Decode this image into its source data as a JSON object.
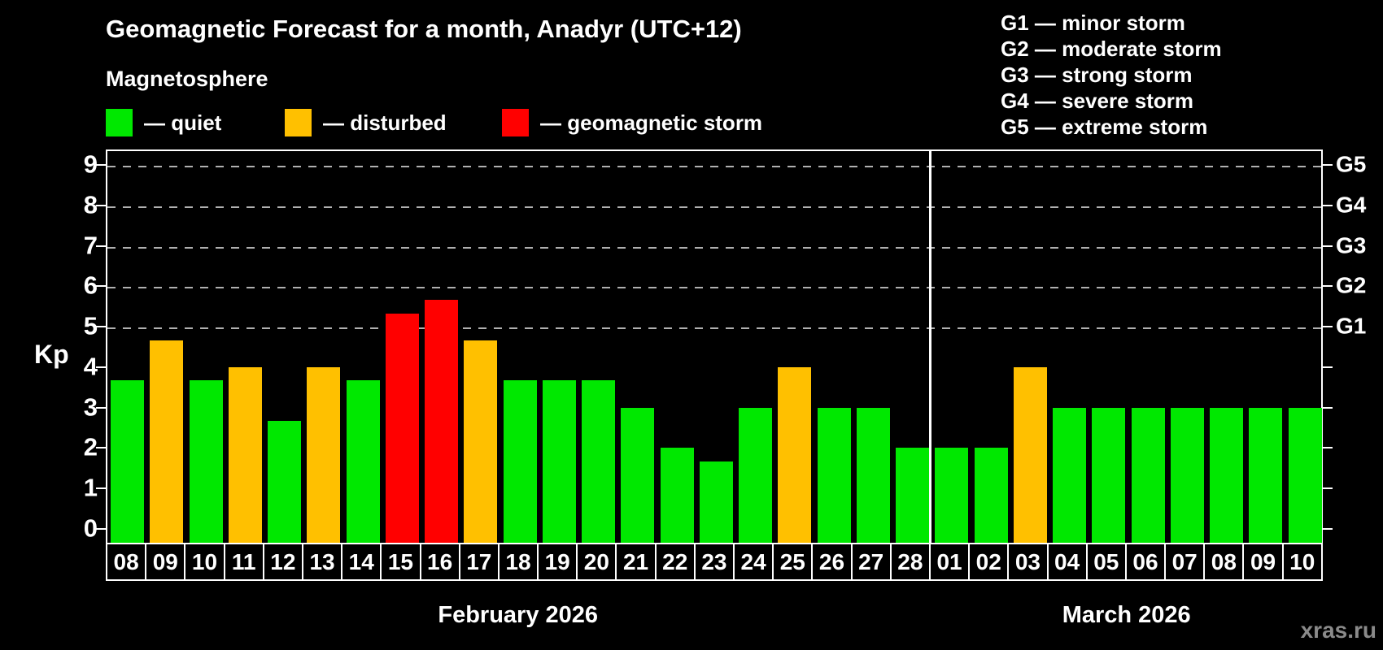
{
  "chart_data": {
    "type": "bar",
    "title": "Geomagnetic Forecast for a month, Anadyr (UTC+12)",
    "subtitle": "Magnetosphere",
    "ylabel": "Kp",
    "ylim": [
      0,
      9
    ],
    "yticks": [
      0,
      1,
      2,
      3,
      4,
      5,
      6,
      7,
      8,
      9
    ],
    "grid_dashed_at_kp": [
      5,
      6,
      7,
      8,
      9
    ],
    "legend_position": "top",
    "legend": [
      {
        "status": "quiet",
        "label": "— quiet",
        "color": "#00E800"
      },
      {
        "status": "disturbed",
        "label": "— disturbed",
        "color": "#FFC000"
      },
      {
        "status": "storm",
        "label": "— geomagnetic storm",
        "color": "#FF0000"
      }
    ],
    "g_levels": [
      {
        "code": "G1",
        "kp": 5,
        "legend": "G1 — minor storm"
      },
      {
        "code": "G2",
        "kp": 6,
        "legend": "G2 — moderate storm"
      },
      {
        "code": "G3",
        "kp": 7,
        "legend": "G3 — strong storm"
      },
      {
        "code": "G4",
        "kp": 8,
        "legend": "G4 — severe storm"
      },
      {
        "code": "G5",
        "kp": 9,
        "legend": "G5 — extreme storm"
      }
    ],
    "months": [
      {
        "label": "February 2026",
        "days": [
          "08",
          "09",
          "10",
          "11",
          "12",
          "13",
          "14",
          "15",
          "16",
          "17",
          "18",
          "19",
          "20",
          "21",
          "22",
          "23",
          "24",
          "25",
          "26",
          "27",
          "28"
        ]
      },
      {
        "label": "March 2026",
        "days": [
          "01",
          "02",
          "03",
          "04",
          "05",
          "06",
          "07",
          "08",
          "09",
          "10"
        ]
      }
    ],
    "categories": [
      "08",
      "09",
      "10",
      "11",
      "12",
      "13",
      "14",
      "15",
      "16",
      "17",
      "18",
      "19",
      "20",
      "21",
      "22",
      "23",
      "24",
      "25",
      "26",
      "27",
      "28",
      "01",
      "02",
      "03",
      "04",
      "05",
      "06",
      "07",
      "08",
      "09",
      "10"
    ],
    "values": [
      3.67,
      4.67,
      3.67,
      4,
      2.67,
      4,
      3.67,
      5.33,
      5.67,
      4.67,
      3.67,
      3.67,
      3.67,
      3,
      2,
      1.67,
      3,
      4,
      3,
      3,
      2,
      2,
      2,
      4,
      3,
      3,
      3,
      3,
      3,
      3,
      3
    ],
    "status": [
      "quiet",
      "disturbed",
      "quiet",
      "disturbed",
      "quiet",
      "disturbed",
      "quiet",
      "storm",
      "storm",
      "disturbed",
      "quiet",
      "quiet",
      "quiet",
      "quiet",
      "quiet",
      "quiet",
      "quiet",
      "disturbed",
      "quiet",
      "quiet",
      "quiet",
      "quiet",
      "quiet",
      "disturbed",
      "quiet",
      "quiet",
      "quiet",
      "quiet",
      "quiet",
      "quiet",
      "quiet"
    ],
    "watermark": "xras.ru"
  }
}
